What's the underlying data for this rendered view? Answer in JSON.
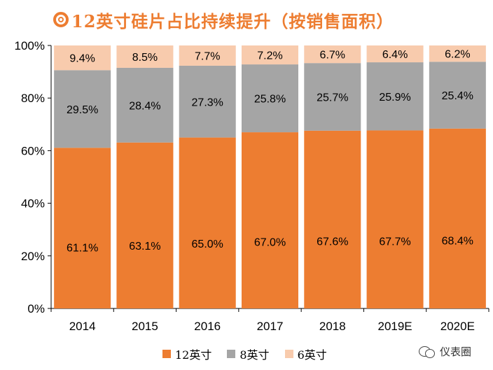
{
  "title": "12英寸硅片占比持续提升（按销售面积）",
  "watermark": "仪表圈",
  "colors": {
    "s12": "#ED7D31",
    "s8": "#A5A5A5",
    "s6": "#F8CBAD",
    "title": "#ED7D31"
  },
  "chart_data": {
    "type": "bar",
    "stacked": true,
    "categories": [
      "2014",
      "2015",
      "2016",
      "2017",
      "2018",
      "2019E",
      "2020E"
    ],
    "series": [
      {
        "name": "12英寸",
        "values": [
          61.1,
          63.1,
          65.0,
          67.0,
          67.6,
          67.7,
          68.4
        ],
        "labels": [
          "61.1%",
          "63.1%",
          "65.0%",
          "67.0%",
          "67.6%",
          "67.7%",
          "68.4%"
        ]
      },
      {
        "name": "8英寸",
        "values": [
          29.5,
          28.4,
          27.3,
          25.8,
          25.7,
          25.9,
          25.4
        ],
        "labels": [
          "29.5%",
          "28.4%",
          "27.3%",
          "25.8%",
          "25.7%",
          "25.9%",
          "25.4%"
        ]
      },
      {
        "name": "6英寸",
        "values": [
          9.4,
          8.5,
          7.7,
          7.2,
          6.7,
          6.4,
          6.2
        ],
        "labels": [
          "9.4%",
          "8.5%",
          "7.7%",
          "7.2%",
          "6.7%",
          "6.4%",
          "6.2%"
        ]
      }
    ],
    "ylim": [
      0,
      100
    ],
    "yticks": [
      "0%",
      "20%",
      "40%",
      "60%",
      "80%",
      "100%"
    ],
    "legend": "bottom",
    "grid": false
  }
}
